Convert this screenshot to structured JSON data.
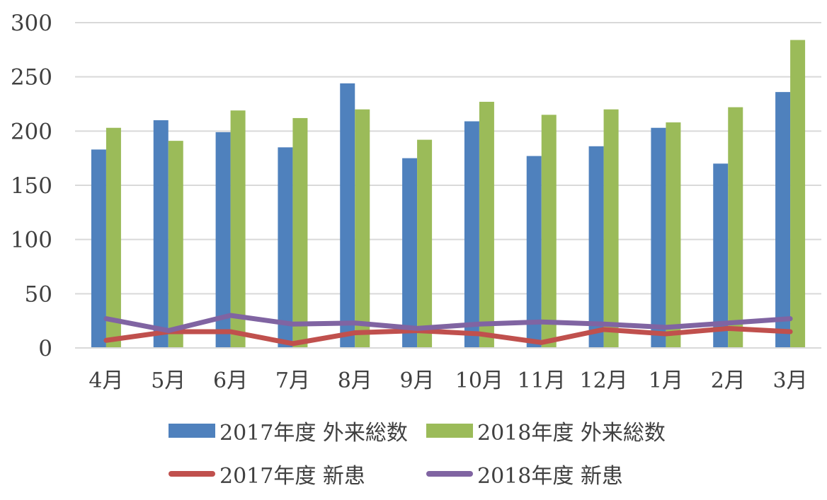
{
  "chart_data": {
    "type": "bar",
    "categories": [
      "4月",
      "5月",
      "6月",
      "7月",
      "8月",
      "9月",
      "10月",
      "11月",
      "12月",
      "1月",
      "2月",
      "3月"
    ],
    "bar_series": [
      {
        "name": "2017年度 外来総数",
        "color": "#4F81BD",
        "values": [
          183,
          210,
          199,
          185,
          244,
          175,
          209,
          177,
          186,
          203,
          170,
          236
        ]
      },
      {
        "name": "2018年度 外来総数",
        "color": "#9BBB59",
        "values": [
          203,
          191,
          219,
          212,
          220,
          192,
          227,
          215,
          220,
          208,
          222,
          284
        ]
      }
    ],
    "line_series": [
      {
        "name": "2017年度 新患",
        "color": "#C0504D",
        "values": [
          7,
          15,
          15,
          4,
          14,
          16,
          13,
          5,
          17,
          13,
          18,
          15
        ]
      },
      {
        "name": "2018年度 新患",
        "color": "#8064A2",
        "values": [
          27,
          16,
          30,
          22,
          23,
          18,
          22,
          24,
          22,
          19,
          23,
          27
        ]
      }
    ],
    "yticks": [
      "0",
      "50",
      "100",
      "150",
      "200",
      "250",
      "300"
    ],
    "ylim": [
      0,
      300
    ],
    "grid": true,
    "legend_position": "bottom"
  }
}
